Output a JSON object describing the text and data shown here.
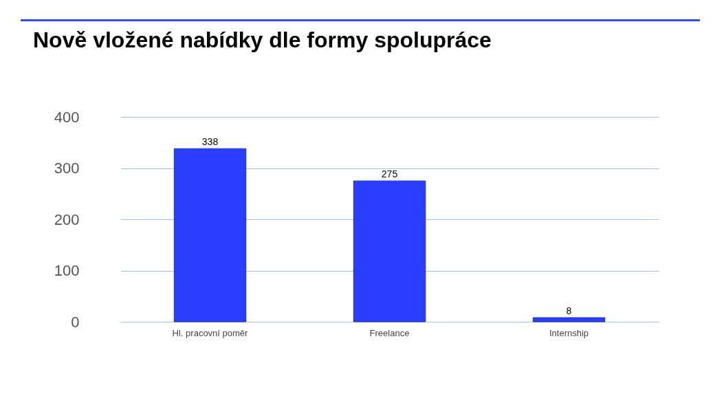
{
  "chart_data": {
    "type": "bar",
    "title": "Nově vložené nabídky dle formy spolupráce",
    "categories": [
      "Hl. pracovní poměr",
      "Freelance",
      "Internship"
    ],
    "values": [
      338,
      275,
      8
    ],
    "color": "#2b3dfd",
    "ylim": [
      0,
      400
    ],
    "yticks": [
      0,
      100,
      200,
      300,
      400
    ],
    "grid": "y",
    "data_labels": true
  }
}
